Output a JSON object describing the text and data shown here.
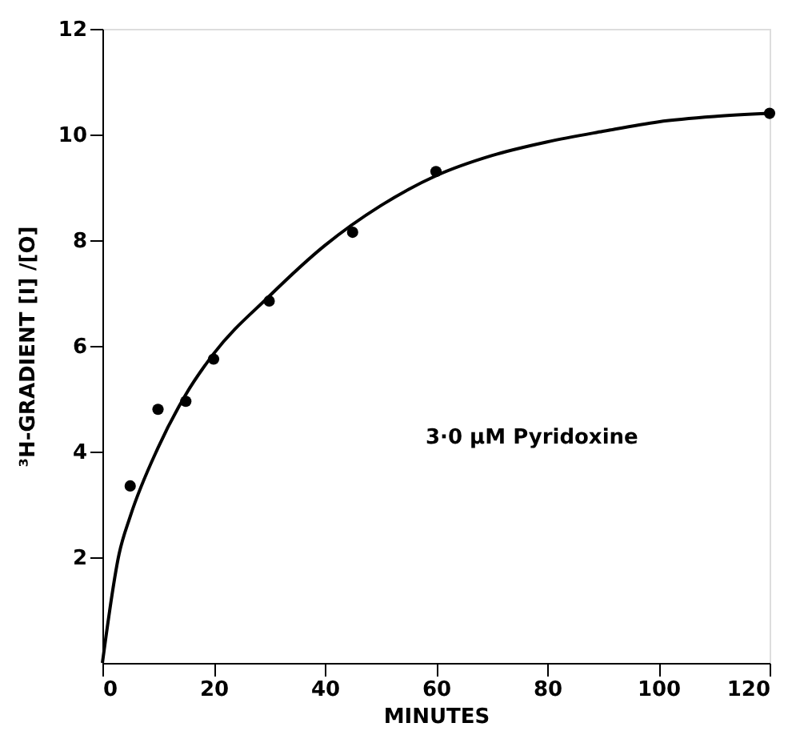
{
  "chart_data": {
    "type": "scatter",
    "xlabel": "MINUTES",
    "ylabel": "³H-GRADIENT [I] /[O]",
    "xlim": [
      0,
      120
    ],
    "ylim": [
      0,
      12
    ],
    "xticks": [
      0,
      20,
      40,
      60,
      80,
      100,
      120
    ],
    "yticks": [
      2,
      4,
      6,
      8,
      10,
      12
    ],
    "grid": false,
    "annotations": [
      "3·0 μM Pyridoxine"
    ],
    "series": [
      {
        "color": "#000000",
        "marker": "circle",
        "x": [
          5,
          10,
          15,
          20,
          30,
          45,
          60,
          120
        ],
        "values": [
          3.35,
          4.8,
          4.95,
          5.75,
          6.85,
          8.15,
          9.3,
          10.4
        ]
      },
      {
        "type": "line",
        "color": "#000000",
        "marker": "none",
        "line_style": "solid",
        "x": [
          0,
          3,
          5,
          10,
          15,
          20,
          30,
          40,
          50,
          60,
          70,
          80,
          90,
          100,
          110,
          120
        ],
        "values": [
          0,
          2.06,
          2.77,
          4.07,
          5.08,
          5.85,
          6.94,
          7.9,
          8.65,
          9.22,
          9.6,
          9.86,
          10.06,
          10.24,
          10.34,
          10.4
        ]
      }
    ]
  }
}
